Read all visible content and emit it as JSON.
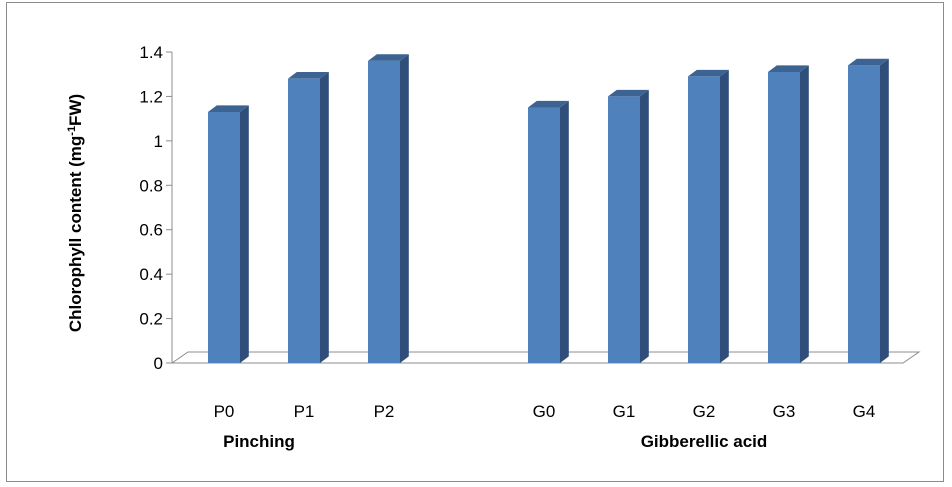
{
  "chart_data": {
    "type": "bar",
    "ylabel": {
      "main": "Chlorophyll content (mg",
      "sup": "-1",
      "tail": "FW)"
    },
    "ylim": [
      0,
      1.4
    ],
    "yticks": [
      "0",
      "0.2",
      "0.4",
      "0.6",
      "0.8",
      "1",
      "1.2",
      "1.4"
    ],
    "grid": false,
    "style": "3d-column",
    "colors": {
      "front": "#4f81bd",
      "side": "#2f4f7a",
      "top": "#3c6392"
    },
    "groups": [
      {
        "label": "Pinching",
        "categories": [
          "P0",
          "P1",
          "P2"
        ],
        "values": [
          1.13,
          1.28,
          1.36
        ]
      },
      {
        "label": "Gibberellic acid",
        "categories": [
          "G0",
          "G1",
          "G2",
          "G3",
          "G4"
        ],
        "values": [
          1.15,
          1.2,
          1.29,
          1.31,
          1.34
        ]
      }
    ]
  }
}
